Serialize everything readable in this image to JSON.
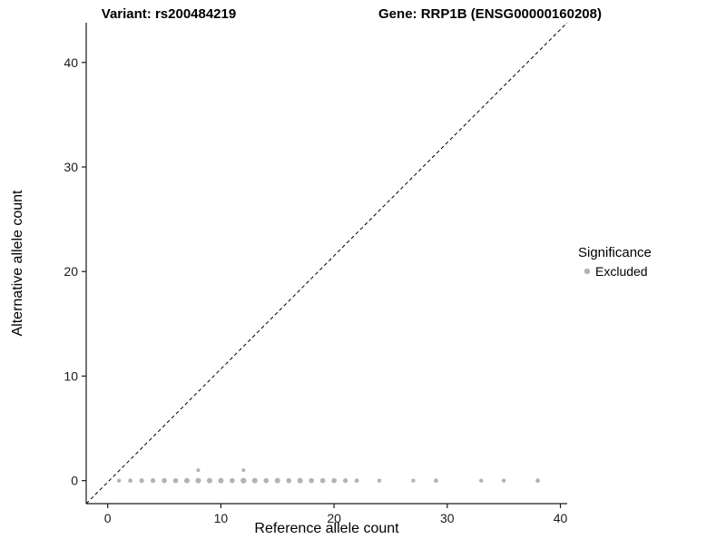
{
  "chart_data": {
    "type": "scatter",
    "title_left": "Variant: rs200484219",
    "title_right": "Gene: RRP1B (ENSG00000160208)",
    "xlabel": "Reference allele count",
    "ylabel": "Alternative allele count",
    "xlim": [
      -1.9,
      40.6
    ],
    "ylim": [
      -2.2,
      43.8
    ],
    "xticks": [
      0,
      10,
      20,
      30,
      40
    ],
    "yticks": [
      0,
      10,
      20,
      30,
      40
    ],
    "grid": false,
    "point_color": "#b3b3b3",
    "axis_color": "#1a1a1a",
    "diagonal": {
      "style": "dashed",
      "from": "bottom-left",
      "to": "top-right",
      "color": "#000000"
    },
    "legend": {
      "title": "Significance",
      "position": "right",
      "items": [
        {
          "label": "Excluded",
          "color": "#b3b3b3"
        }
      ]
    },
    "series": [
      {
        "name": "Excluded",
        "color": "#b3b3b3",
        "points": [
          [
            1,
            0,
            2.2
          ],
          [
            2,
            0,
            2.4
          ],
          [
            3,
            0,
            2.6
          ],
          [
            4,
            0,
            2.6
          ],
          [
            5,
            0,
            2.8
          ],
          [
            6,
            0,
            2.8
          ],
          [
            7,
            0,
            3.0
          ],
          [
            8,
            0,
            3.0
          ],
          [
            8,
            1,
            2.0
          ],
          [
            9,
            0,
            3.0
          ],
          [
            10,
            0,
            3.0
          ],
          [
            11,
            0,
            2.8
          ],
          [
            12,
            0,
            3.2
          ],
          [
            12,
            1,
            2.0
          ],
          [
            13,
            0,
            3.0
          ],
          [
            14,
            0,
            2.8
          ],
          [
            15,
            0,
            3.0
          ],
          [
            16,
            0,
            2.8
          ],
          [
            17,
            0,
            3.0
          ],
          [
            18,
            0,
            2.8
          ],
          [
            19,
            0,
            2.8
          ],
          [
            20,
            0,
            2.8
          ],
          [
            21,
            0,
            2.6
          ],
          [
            22,
            0,
            2.4
          ],
          [
            24,
            0,
            2.2
          ],
          [
            27,
            0,
            2.2
          ],
          [
            29,
            0,
            2.4
          ],
          [
            33,
            0,
            2.2
          ],
          [
            35,
            0,
            2.2
          ],
          [
            38,
            0,
            2.4
          ]
        ]
      }
    ]
  }
}
